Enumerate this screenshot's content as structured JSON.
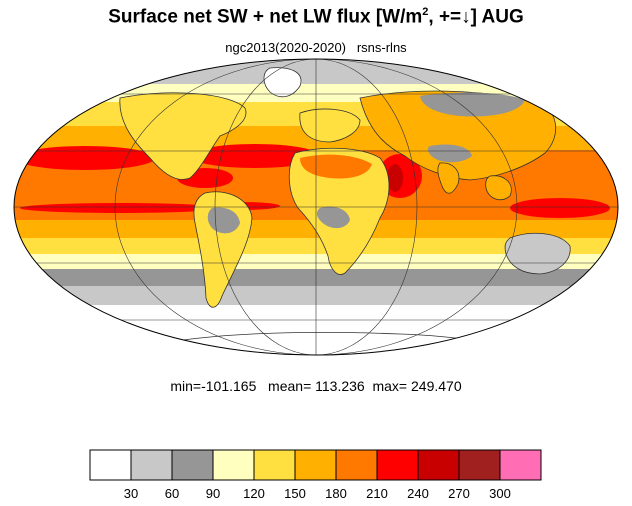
{
  "title": {
    "main": "Surface net SW + net LW flux [W/m",
    "superscript": "2",
    "suffix": ", +=↓]  AUG"
  },
  "subtitle": "ngc2013(2020-2020)   rsns-rlns",
  "stats": {
    "min": "-101.165",
    "mean": "113.236",
    "max": "249.470",
    "text": "min=-101.165   mean= 113.236  max= 249.470"
  },
  "map": {
    "projection": "Mollweide",
    "month": "AUG",
    "graticule_lat": [
      -60,
      -30,
      0,
      30,
      60
    ],
    "graticule_lon": [
      -120,
      -60,
      0,
      60,
      120
    ]
  },
  "colorbar": {
    "colors": [
      "#ffffff",
      "#c8c8c8",
      "#969696",
      "#ffffc0",
      "#ffe040",
      "#ffb000",
      "#ff7800",
      "#ff0000",
      "#c80000",
      "#a02020",
      "#ff6eb4"
    ],
    "ticks": [
      "30",
      "60",
      "90",
      "120",
      "150",
      "180",
      "210",
      "240",
      "270",
      "300"
    ]
  }
}
